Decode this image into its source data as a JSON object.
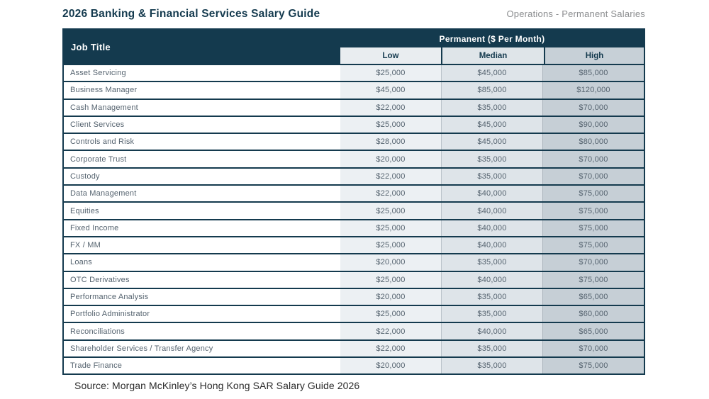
{
  "page": {
    "title": "2026 Banking & Financial Services Salary Guide",
    "subtitle": "Operations - Permanent Salaries",
    "source": "Source: Morgan McKinley’s Hong Kong SAR Salary Guide 2026"
  },
  "table": {
    "job_title_header": "Job Title",
    "group_header": "Permanent ($ Per Month)",
    "columns": [
      "Low",
      "Median",
      "High"
    ],
    "rows": [
      {
        "title": "Asset Servicing",
        "low": "$25,000",
        "median": "$45,000",
        "high": "$85,000"
      },
      {
        "title": "Business Manager",
        "low": "$45,000",
        "median": "$85,000",
        "high": "$120,000"
      },
      {
        "title": "Cash Management",
        "low": "$22,000",
        "median": "$35,000",
        "high": "$70,000"
      },
      {
        "title": "Client Services",
        "low": "$25,000",
        "median": "$45,000",
        "high": "$90,000"
      },
      {
        "title": "Controls and Risk",
        "low": "$28,000",
        "median": "$45,000",
        "high": "$80,000"
      },
      {
        "title": "Corporate Trust",
        "low": "$20,000",
        "median": "$35,000",
        "high": "$70,000"
      },
      {
        "title": "Custody",
        "low": "$22,000",
        "median": "$35,000",
        "high": "$70,000"
      },
      {
        "title": "Data Management",
        "low": "$22,000",
        "median": "$40,000",
        "high": "$75,000"
      },
      {
        "title": "Equities",
        "low": "$25,000",
        "median": "$40,000",
        "high": "$75,000"
      },
      {
        "title": "Fixed Income",
        "low": "$25,000",
        "median": "$40,000",
        "high": "$75,000"
      },
      {
        "title": "FX / MM",
        "low": "$25,000",
        "median": "$40,000",
        "high": "$75,000"
      },
      {
        "title": "Loans",
        "low": "$20,000",
        "median": "$35,000",
        "high": "$70,000"
      },
      {
        "title": "OTC Derivatives",
        "low": "$25,000",
        "median": "$40,000",
        "high": "$75,000"
      },
      {
        "title": "Performance Analysis",
        "low": "$20,000",
        "median": "$35,000",
        "high": "$65,000"
      },
      {
        "title": "Portfolio Administrator",
        "low": "$25,000",
        "median": "$35,000",
        "high": "$60,000"
      },
      {
        "title": "Reconciliations",
        "low": "$22,000",
        "median": "$40,000",
        "high": "$65,000"
      },
      {
        "title": "Shareholder Services / Transfer Agency",
        "low": "$22,000",
        "median": "$35,000",
        "high": "$70,000"
      },
      {
        "title": "Trade Finance",
        "low": "$20,000",
        "median": "$35,000",
        "high": "$75,000"
      }
    ]
  },
  "colors": {
    "navy": "#143a4e",
    "low_bg": "#ecf0f3",
    "median_bg": "#dee4e9",
    "high_bg": "#c6cfd6",
    "low_header_bg": "#e9edf0",
    "median_header_bg": "#dfe5e9",
    "high_header_bg": "#c7d0d7"
  }
}
